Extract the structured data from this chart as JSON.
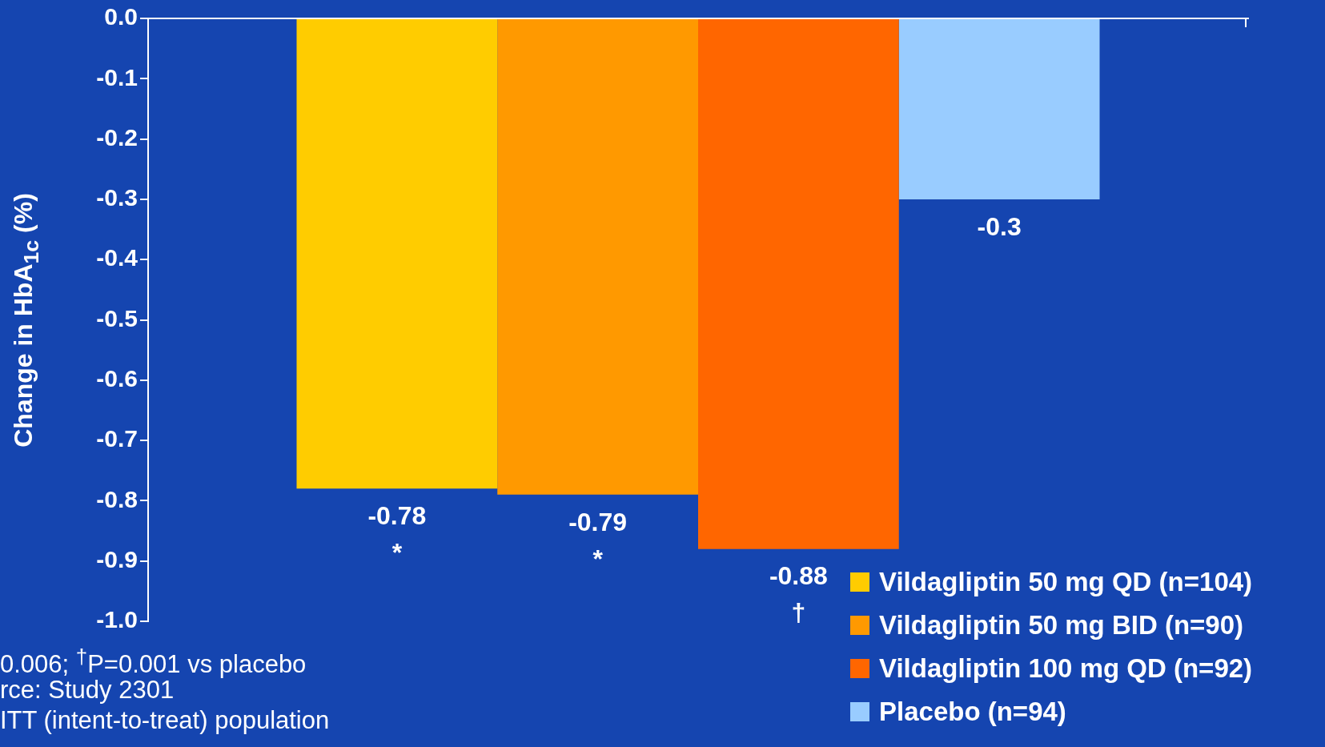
{
  "chart_data": {
    "type": "bar",
    "ylabel": "Change in HbA$_{1c}$ (%)",
    "categories": [
      null
    ],
    "series": [
      {
        "name": "Vildagliptin 50 mg QD (n=104)",
        "color": "#ffcc00",
        "values": [
          -0.78
        ]
      },
      {
        "name": "Vildagliptin 50 mg BID (n=90)",
        "color": "#ff9900",
        "values": [
          -0.79
        ]
      },
      {
        "name": "Vildagliptin 100 mg QD (n=92)",
        "color": "#ff6600",
        "values": [
          -0.88
        ]
      },
      {
        "name": "Placebo (n=94)",
        "color": "#99ccff",
        "values": [
          -0.3
        ]
      }
    ],
    "ylim": [
      -1.0,
      0.0
    ],
    "yticks": [
      {
        "value": 0,
        "label": "0.0"
      },
      -0.1,
      -0.2,
      -0.3,
      -0.4,
      -0.5,
      -0.6,
      -0.7,
      -0.8,
      -0.9,
      {
        "value": -1,
        "label": "-1.0"
      }
    ],
    "data_labels": true,
    "legend": "bottom right",
    "annotations": [
      {
        "text": "*",
        "y": -0.78
      },
      {
        "text": "*",
        "y": -0.79
      },
      {
        "text": "†",
        "y": -0.88
      },
      "0.006; $^{†}$P=0.001 vs  placebo",
      "rce: Study 2301",
      "ITT (intent-to-treat) population"
    ]
  }
}
